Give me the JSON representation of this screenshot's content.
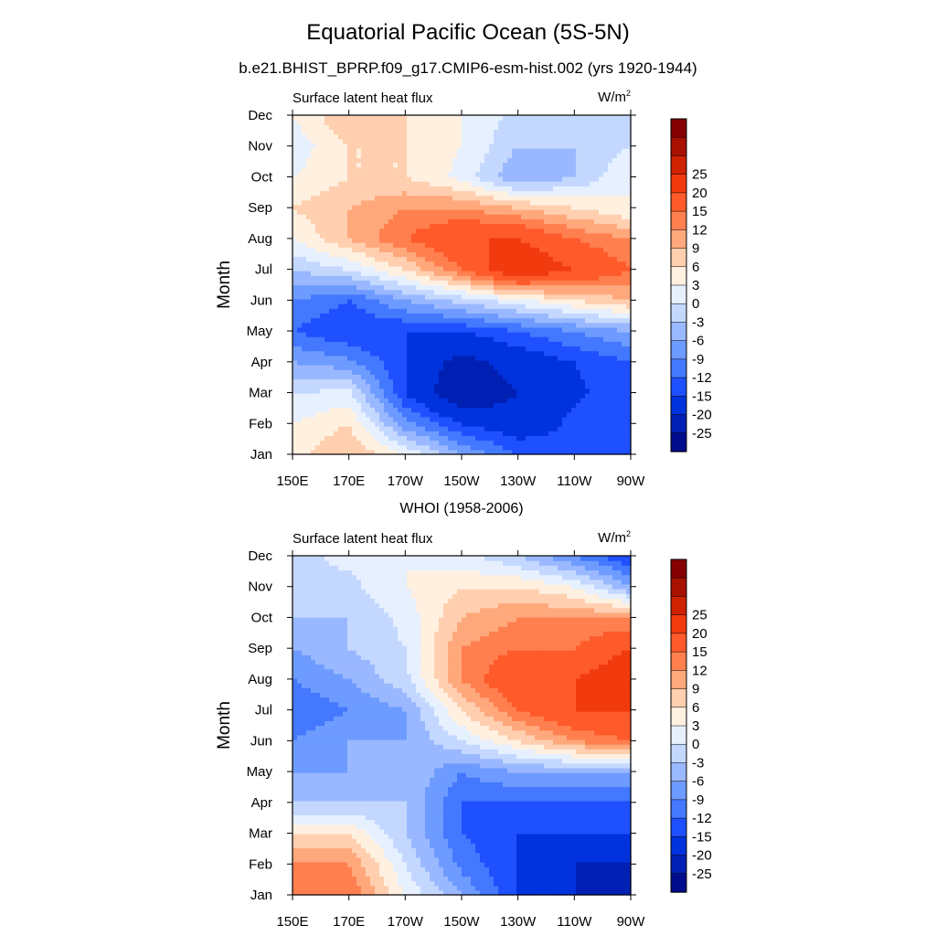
{
  "figure": {
    "title": "Equatorial Pacific Ocean (5S-5N)"
  },
  "colorbar": {
    "colors": [
      "#000c8b",
      "#0020b4",
      "#0033dd",
      "#1e50ff",
      "#4378ff",
      "#6e9bff",
      "#9ab8ff",
      "#c4d8ff",
      "#e6f0ff",
      "#fff0e0",
      "#ffcfb0",
      "#ffa87c",
      "#ff7f4f",
      "#ff5a2a",
      "#f23a0f",
      "#cf2200",
      "#a81000",
      "#850000"
    ],
    "labels": [
      "-25",
      "-20",
      "-15",
      "-12",
      "-9",
      "-6",
      "-3",
      "0",
      "3",
      "6",
      "9",
      "12",
      "15",
      "20",
      "25"
    ]
  },
  "chart_data": [
    {
      "type": "heatmap",
      "title": "b.e21.BHIST_BPRP.f09_g17.CMIP6-esm-hist.002 (yrs 1920-1944)",
      "left_label": "Surface latent heat flux",
      "units_base": "W/m",
      "units_sup": "2",
      "ylabel": "Month",
      "x": [
        "150E",
        "170E",
        "170W",
        "150W",
        "130W",
        "110W",
        "90W"
      ],
      "y": [
        "Jan",
        "Feb",
        "Mar",
        "Apr",
        "May",
        "Jun",
        "Jul",
        "Aug",
        "Sep",
        "Oct",
        "Nov",
        "Dec"
      ],
      "z": [
        [
          5,
          9,
          3,
          -6,
          -12,
          -14,
          -12
        ],
        [
          3,
          6,
          -8,
          -15,
          -18,
          -14,
          -12
        ],
        [
          0,
          1,
          -15,
          -25,
          -20,
          -16,
          -12
        ],
        [
          -6,
          -8,
          -15,
          -22,
          -18,
          -15,
          -12
        ],
        [
          -12,
          -15,
          -15,
          -15,
          -12,
          -9,
          -6
        ],
        [
          -9,
          -12,
          -6,
          -2,
          2,
          6,
          9
        ],
        [
          -3,
          0,
          6,
          15,
          25,
          20,
          15
        ],
        [
          3,
          9,
          15,
          20,
          20,
          15,
          12
        ],
        [
          6,
          9,
          12,
          12,
          9,
          6,
          3
        ],
        [
          3,
          6,
          6,
          2,
          -6,
          -3,
          3
        ],
        [
          1,
          6,
          6,
          3,
          -3,
          -3,
          0
        ],
        [
          3,
          9,
          6,
          3,
          -1,
          -3,
          -3
        ]
      ]
    },
    {
      "type": "heatmap",
      "title": "WHOI (1958-2006)",
      "left_label": "Surface latent heat flux",
      "units_base": "W/m",
      "units_sup": "2",
      "ylabel": "Month",
      "x": [
        "150E",
        "170E",
        "170W",
        "150W",
        "130W",
        "110W",
        "90W"
      ],
      "y": [
        "Jan",
        "Feb",
        "Mar",
        "Apr",
        "May",
        "Jun",
        "Jul",
        "Aug",
        "Sep",
        "Oct",
        "Nov",
        "Dec"
      ],
      "z": [
        [
          12,
          15,
          3,
          -6,
          -15,
          -20,
          -25
        ],
        [
          12,
          12,
          0,
          -10,
          -15,
          -20,
          -20
        ],
        [
          6,
          6,
          -3,
          -12,
          -15,
          -15,
          -15
        ],
        [
          -3,
          -3,
          -3,
          -12,
          -12,
          -12,
          -12
        ],
        [
          -6,
          -6,
          -3,
          -9,
          -6,
          -6,
          -6
        ],
        [
          -9,
          -6,
          -6,
          0,
          6,
          12,
          15
        ],
        [
          -12,
          -9,
          -6,
          6,
          15,
          20,
          20
        ],
        [
          -9,
          -6,
          -1,
          12,
          20,
          20,
          25
        ],
        [
          -6,
          -3,
          0,
          12,
          15,
          15,
          20
        ],
        [
          -3,
          -3,
          1,
          9,
          12,
          12,
          12
        ],
        [
          -1,
          -1,
          3,
          6,
          6,
          3,
          -6
        ],
        [
          -1,
          1,
          3,
          1,
          -3,
          -9,
          -15
        ]
      ]
    }
  ]
}
